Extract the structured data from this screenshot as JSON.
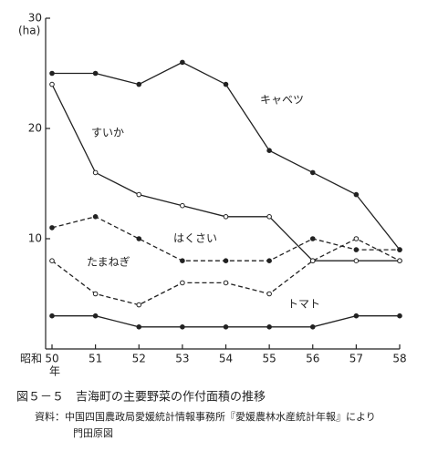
{
  "chart_data": {
    "type": "line",
    "y_unit": "(ha)",
    "x_prefix": "昭和",
    "x_suffix": "年",
    "x": [
      50,
      51,
      52,
      53,
      54,
      55,
      56,
      57,
      58
    ],
    "xlim": [
      50,
      58
    ],
    "xticks": [
      50,
      51,
      52,
      53,
      54,
      55,
      56,
      57,
      58
    ],
    "ylim": [
      0,
      30
    ],
    "yticks": [
      10,
      20,
      30
    ],
    "series": [
      {
        "name": "キャベツ",
        "color": "#222",
        "style": "solid",
        "marker": "filled",
        "values": [
          25,
          25,
          24,
          26,
          24,
          18,
          16,
          14,
          9
        ]
      },
      {
        "name": "すいか",
        "color": "#222",
        "style": "solid",
        "marker": "open",
        "values": [
          24,
          16,
          14,
          13,
          12,
          12,
          8,
          8,
          8
        ]
      },
      {
        "name": "はくさい",
        "color": "#222",
        "style": "dashed",
        "marker": "filled",
        "values": [
          11,
          12,
          10,
          8,
          8,
          8,
          10,
          9,
          9
        ]
      },
      {
        "name": "たまねぎ",
        "color": "#222",
        "style": "dashed",
        "marker": "open",
        "values": [
          8,
          5,
          4,
          6,
          6,
          5,
          8,
          10,
          8
        ]
      },
      {
        "name": "トマト",
        "color": "#222",
        "style": "solid",
        "marker": "filled",
        "values": [
          3,
          3,
          2,
          2,
          2,
          2,
          2,
          3,
          3
        ]
      }
    ],
    "caption": "図５－５　吉海町の主要野菜の作付面積の推移",
    "source": "資料：中国四国農政局愛媛統計情報事務所『愛媛農林水産統計年報』により",
    "author": "門田原図"
  }
}
